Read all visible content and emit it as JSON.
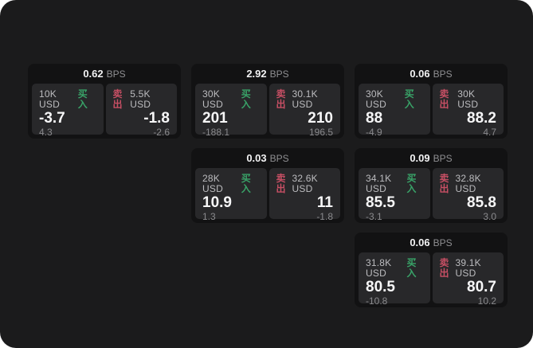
{
  "labels": {
    "buy": "买入",
    "sell": "卖出",
    "unit": "BPS"
  },
  "colors": {
    "page_background": "#ffffff",
    "panel_background": "#1b1b1c",
    "card_background": "#121213",
    "tile_background": "#28282a",
    "buy_accent": "#39a368",
    "sell_accent": "#c74f64",
    "value_text": "#f7f7f8",
    "muted_text": "#8a8a8d"
  },
  "cards": [
    {
      "row": 1,
      "col": 1,
      "bps": "0.62",
      "buy": {
        "notional": "10K USD",
        "price": "-3.7",
        "change": "4.3"
      },
      "sell": {
        "notional": "5.5K USD",
        "price": "-1.8",
        "change": "-2.6"
      }
    },
    {
      "row": 1,
      "col": 2,
      "bps": "2.92",
      "buy": {
        "notional": "30K USD",
        "price": "201",
        "change": "-188.1"
      },
      "sell": {
        "notional": "30.1K USD",
        "price": "210",
        "change": "196.5"
      }
    },
    {
      "row": 1,
      "col": 3,
      "bps": "0.06",
      "buy": {
        "notional": "30K USD",
        "price": "88",
        "change": "-4.9"
      },
      "sell": {
        "notional": "30K USD",
        "price": "88.2",
        "change": "4.7"
      }
    },
    {
      "row": 2,
      "col": 2,
      "bps": "0.03",
      "buy": {
        "notional": "28K USD",
        "price": "10.9",
        "change": "1.3"
      },
      "sell": {
        "notional": "32.6K USD",
        "price": "11",
        "change": "-1.8"
      }
    },
    {
      "row": 2,
      "col": 3,
      "bps": "0.09",
      "buy": {
        "notional": "34.1K USD",
        "price": "85.5",
        "change": "-3.1"
      },
      "sell": {
        "notional": "32.8K USD",
        "price": "85.8",
        "change": "3.0"
      }
    },
    {
      "row": 3,
      "col": 3,
      "bps": "0.06",
      "buy": {
        "notional": "31.8K USD",
        "price": "80.5",
        "change": "-10.8"
      },
      "sell": {
        "notional": "39.1K USD",
        "price": "80.7",
        "change": "10.2"
      }
    }
  ]
}
